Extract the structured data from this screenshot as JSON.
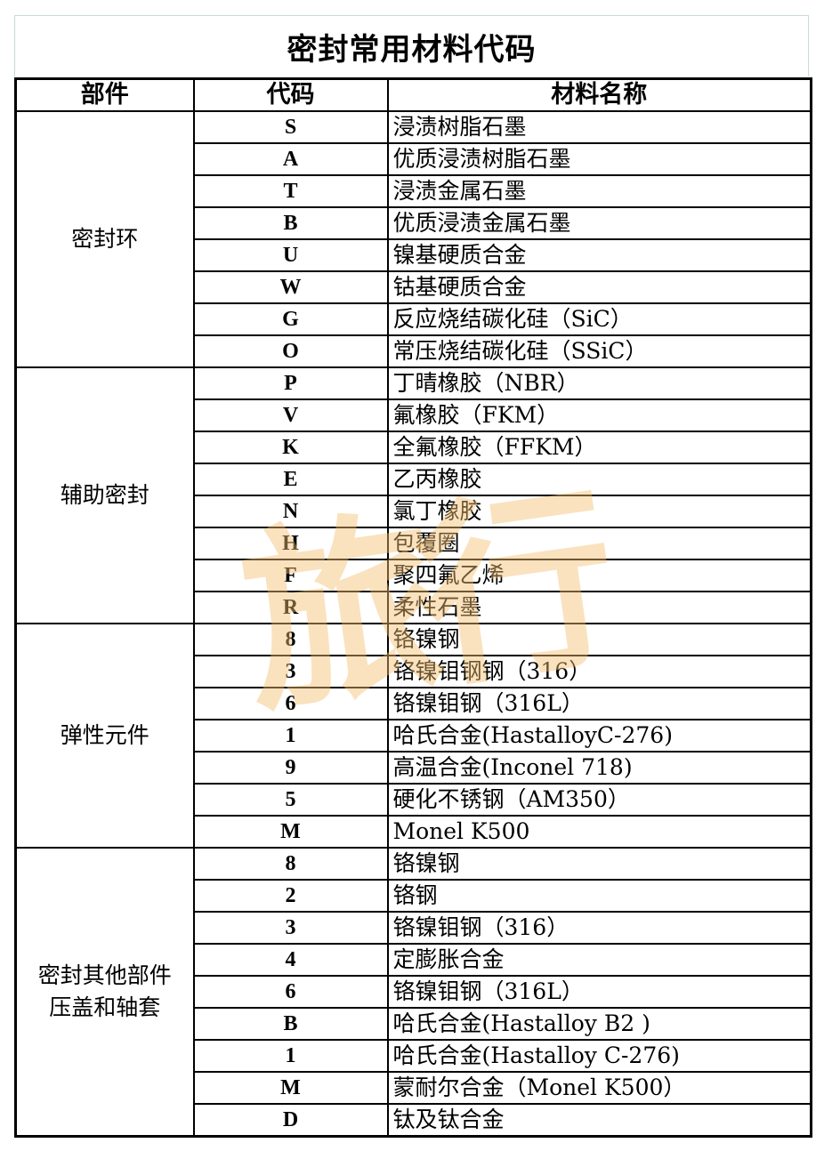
{
  "title": "密封常用材料代码",
  "headers": [
    "部件",
    "代码",
    "材料名称"
  ],
  "watermark": "旅行",
  "groups": [
    {
      "part": "密封环",
      "rows": [
        [
          "S",
          "浸渍树脂石墨"
        ],
        [
          "A",
          "优质浸渍树脂石墨"
        ],
        [
          "T",
          "浸渍金属石墨"
        ],
        [
          "B",
          "优质浸渍金属石墨"
        ],
        [
          "U",
          "镍基硬质合金"
        ],
        [
          "W",
          "钴基硬质合金"
        ],
        [
          "G",
          "反应烧结碳化硅（SiC）"
        ],
        [
          "O",
          "常压烧结碳化硅（SSiC）"
        ]
      ]
    },
    {
      "part": "辅助密封",
      "rows": [
        [
          "P",
          "丁晴橡胶（NBR）"
        ],
        [
          "V",
          "氟橡胶（FKM）"
        ],
        [
          "K",
          "全氟橡胶（FFKM）"
        ],
        [
          "E",
          "乙丙橡胶"
        ],
        [
          "N",
          "氯丁橡胶"
        ],
        [
          "H",
          "包覆圈"
        ],
        [
          "F",
          "聚四氟乙烯"
        ],
        [
          "R",
          "柔性石墨"
        ]
      ]
    },
    {
      "part": "弹性元件",
      "rows": [
        [
          "8",
          "铬镍钢"
        ],
        [
          "3",
          "铬镍钼钢钢（316）"
        ],
        [
          "6",
          "铬镍钼钢（316L）"
        ],
        [
          "1",
          "哈氏合金(HastalloyC-276)"
        ],
        [
          "9",
          "高温合金(Inconel 718)"
        ],
        [
          "5",
          "硬化不锈钢（AM350）"
        ],
        [
          "M",
          "Monel K500"
        ]
      ]
    },
    {
      "part": "密封其他部件\n压盖和轴套",
      "rows": [
        [
          "8",
          "铬镍钢"
        ],
        [
          "2",
          "铬钢"
        ],
        [
          "3",
          "铬镍钼钢（316）"
        ],
        [
          "4",
          "定膨胀合金"
        ],
        [
          "6",
          "铬镍钼钢（316L）"
        ],
        [
          "B",
          "哈氏合金(Hastalloy B2 )"
        ],
        [
          "1",
          "哈氏合金(Hastalloy C-276)"
        ],
        [
          "M",
          "蒙耐尔合金（Monel K500）"
        ],
        [
          "D",
          "钛及钛合金"
        ]
      ]
    }
  ]
}
